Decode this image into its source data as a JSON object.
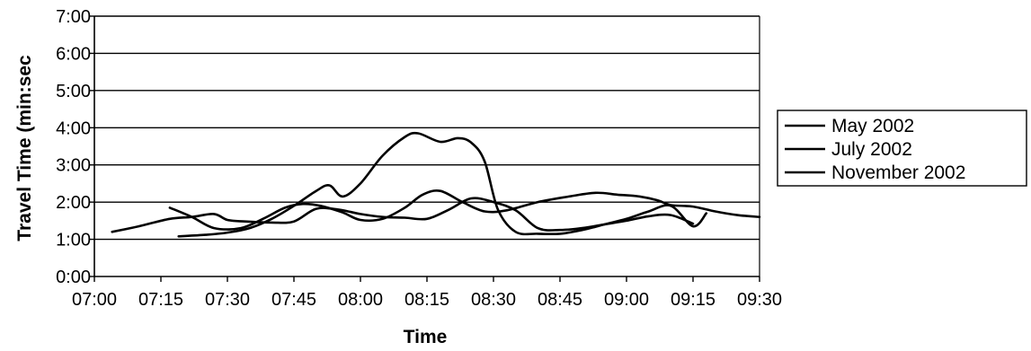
{
  "chart_data": {
    "type": "line",
    "xlabel": "Time",
    "ylabel": "Travel Time (min:sec",
    "x_tick_labels": [
      "07:00",
      "07:15",
      "07:30",
      "07:45",
      "08:00",
      "08:15",
      "08:30",
      "08:45",
      "09:00",
      "09:15",
      "09:30"
    ],
    "y_tick_labels": [
      "0:00",
      "1:00",
      "2:00",
      "3:00",
      "4:00",
      "5:00",
      "6:00",
      "7:00"
    ],
    "xlim": [
      "07:00",
      "09:30"
    ],
    "ylim_minutes": [
      0,
      7
    ],
    "grid": "horizontal",
    "legend_position": "right",
    "series": [
      {
        "name": "May 2002",
        "x": [
          "07:04",
          "07:10",
          "07:17",
          "07:22",
          "07:27",
          "07:30",
          "07:34",
          "07:40",
          "07:45",
          "07:50",
          "07:55",
          "08:00",
          "08:05",
          "08:10",
          "08:15",
          "08:20",
          "08:25",
          "08:30",
          "08:35",
          "08:40",
          "08:45",
          "08:50",
          "08:55",
          "09:00",
          "09:05",
          "09:10",
          "09:15"
        ],
        "y_minutes": [
          1.2,
          1.35,
          1.55,
          1.6,
          1.68,
          1.52,
          1.48,
          1.45,
          1.48,
          1.82,
          1.8,
          1.68,
          1.6,
          1.58,
          1.55,
          1.8,
          2.1,
          2.0,
          1.78,
          1.3,
          1.25,
          1.3,
          1.4,
          1.5,
          1.62,
          1.65,
          1.42
        ]
      },
      {
        "name": "July 2002",
        "x": [
          "07:19",
          "07:25",
          "07:30",
          "07:35",
          "07:40",
          "07:45",
          "07:50",
          "07:53",
          "07:56",
          "08:00",
          "08:05",
          "08:10",
          "08:13",
          "08:18",
          "08:22",
          "08:25",
          "08:28",
          "08:31",
          "08:35",
          "08:40",
          "08:45",
          "08:50",
          "08:55",
          "09:00",
          "09:05",
          "09:10",
          "09:15",
          "09:18"
        ],
        "y_minutes": [
          1.08,
          1.12,
          1.18,
          1.3,
          1.55,
          1.9,
          2.3,
          2.45,
          2.15,
          2.5,
          3.25,
          3.75,
          3.85,
          3.62,
          3.72,
          3.6,
          3.1,
          1.8,
          1.2,
          1.15,
          1.15,
          1.25,
          1.4,
          1.55,
          1.75,
          1.9,
          1.35,
          1.7
        ]
      },
      {
        "name": "November 2002",
        "x": [
          "07:17",
          "07:22",
          "07:27",
          "07:33",
          "07:38",
          "07:43",
          "07:47",
          "07:51",
          "07:56",
          "08:00",
          "08:05",
          "08:10",
          "08:14",
          "08:18",
          "08:23",
          "08:28",
          "08:33",
          "08:40",
          "08:47",
          "08:53",
          "08:58",
          "09:03",
          "09:07",
          "09:10",
          "09:15",
          "09:20",
          "09:25",
          "09:30"
        ],
        "y_minutes": [
          1.85,
          1.6,
          1.3,
          1.3,
          1.55,
          1.85,
          1.95,
          1.9,
          1.72,
          1.52,
          1.55,
          1.85,
          2.2,
          2.3,
          2.0,
          1.75,
          1.78,
          2.0,
          2.15,
          2.25,
          2.2,
          2.15,
          2.05,
          1.92,
          1.88,
          1.75,
          1.65,
          1.6
        ]
      }
    ]
  }
}
